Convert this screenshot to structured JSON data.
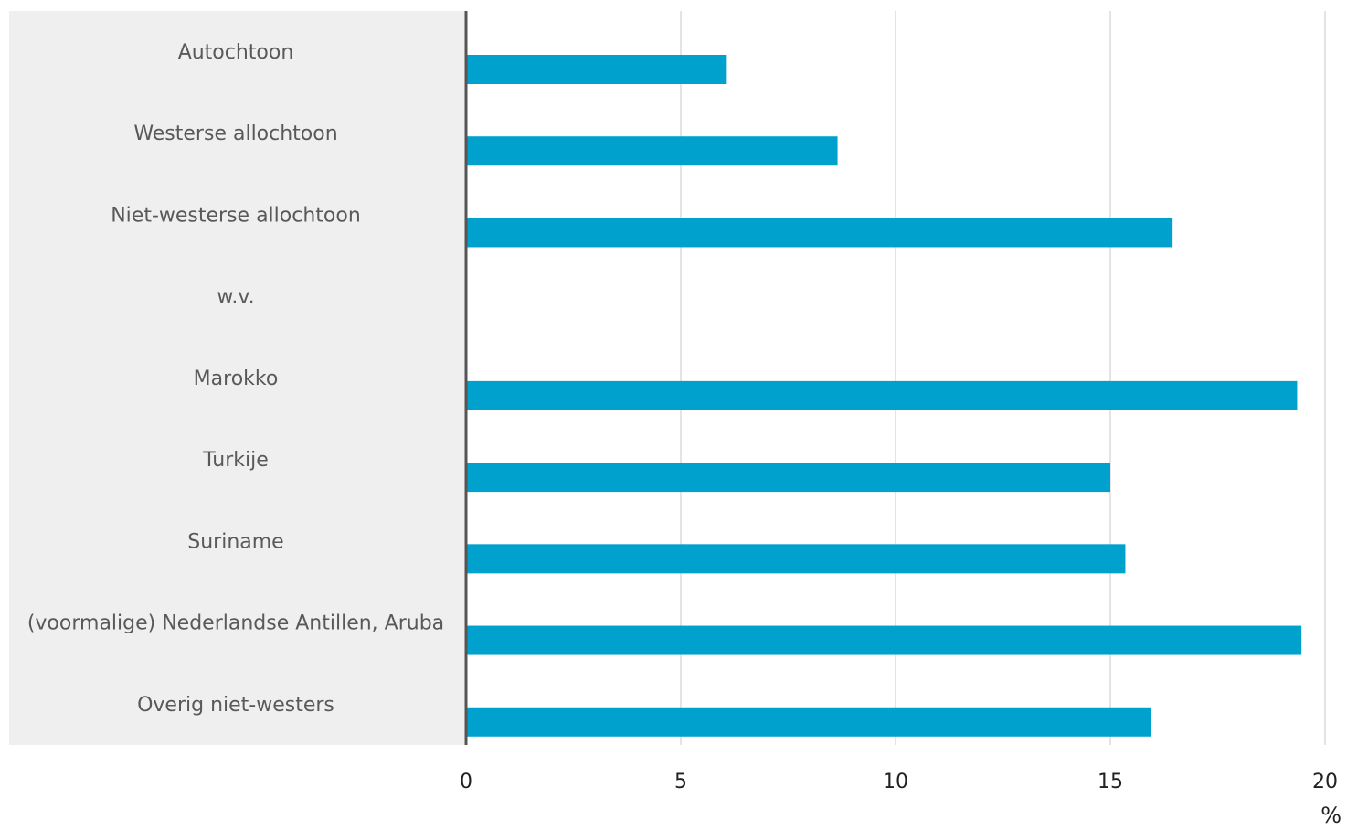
{
  "chart_data": {
    "type": "bar",
    "orientation": "horizontal",
    "categories": [
      "Autochtoon",
      "Westerse allochtoon",
      "Niet-westerse allochtoon",
      "w.v.",
      "Marokko",
      "Turkije",
      "Suriname",
      "(voormalige) Nederlandse Antillen, Aruba",
      "Overig niet-westers"
    ],
    "values": [
      6.05,
      8.65,
      16.45,
      null,
      19.35,
      15.0,
      15.35,
      19.45,
      15.95
    ],
    "xlim": [
      0,
      20
    ],
    "xticks": [
      "0",
      "5",
      "10",
      "15",
      "20"
    ],
    "xlabel": "%",
    "ylabel": "",
    "title": "",
    "grid": true,
    "legend": "none",
    "colors": {
      "bar": "#00a1cd",
      "label_panel": "#efefef",
      "axis": "#555555",
      "grid": "#dcdcdc",
      "text": "#595959"
    }
  }
}
